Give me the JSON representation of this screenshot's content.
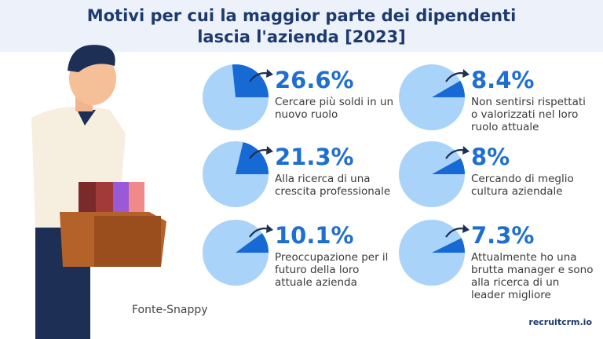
{
  "header": {
    "title": [
      "Motivi per cui la maggior parte dei dipendenti",
      "lascia l'azienda [2023]"
    ]
  },
  "chart_data": [
    {
      "type": "pie",
      "values": [
        26.6
      ],
      "value_labels": [
        "26.6%"
      ],
      "caption": "Cercare più soldi in un nuovo ruolo",
      "color": "#1769d3",
      "base_color": "#a9d3f8"
    },
    {
      "type": "pie",
      "values": [
        8.4
      ],
      "value_labels": [
        "8.4%"
      ],
      "caption": "Non sentirsi rispettati o valorizzati nel loro ruolo attuale",
      "color": "#1769d3",
      "base_color": "#a9d3f8"
    },
    {
      "type": "pie",
      "values": [
        21.3
      ],
      "value_labels": [
        "21.3%"
      ],
      "caption": "Alla ricerca di una crescita professionale",
      "color": "#1769d3",
      "base_color": "#a9d3f8"
    },
    {
      "type": "pie",
      "values": [
        8
      ],
      "value_labels": [
        "8%"
      ],
      "caption": "Cercando di meglio cultura aziendale",
      "color": "#1769d3",
      "base_color": "#a9d3f8"
    },
    {
      "type": "pie",
      "values": [
        10.1
      ],
      "value_labels": [
        "10.1%"
      ],
      "caption": "Preoccupazione per il futuro della loro attuale azienda",
      "color": "#1769d3",
      "base_color": "#a9d3f8"
    },
    {
      "type": "pie",
      "values": [
        7.3
      ],
      "value_labels": [
        "7.3%"
      ],
      "caption": "Attualmente ho una brutta manager e sono alla ricerca di un leader migliore",
      "color": "#1769d3",
      "base_color": "#a9d3f8"
    }
  ],
  "footer": {
    "source": "Fonte-Snappy",
    "brand": "recruitcrm.io"
  }
}
